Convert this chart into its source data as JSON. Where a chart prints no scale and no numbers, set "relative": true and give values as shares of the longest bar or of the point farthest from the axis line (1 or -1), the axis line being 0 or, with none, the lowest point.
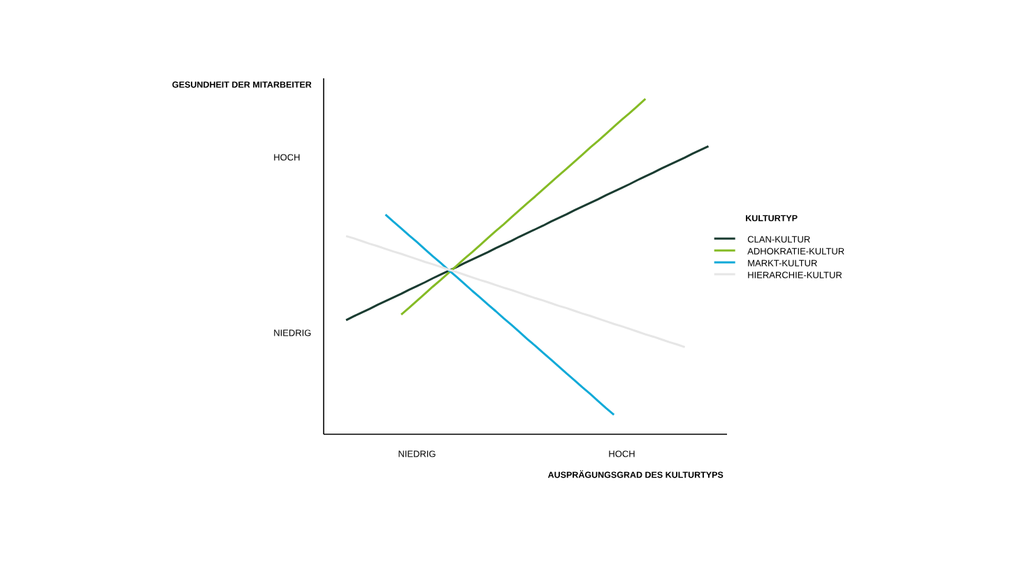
{
  "chart_data": {
    "type": "line",
    "relative": true,
    "xlabel": "AUSPRÄGUNGSGRAD DES KULTURTYPS",
    "ylabel": "GESUNDHEIT DER MITARBEITER",
    "legend_title": "KULTURTYP",
    "legend": "right",
    "line_style": "solid",
    "annotations": [
      "HOCH",
      "NIEDRIG"
    ],
    "categories": [
      null,
      null,
      null,
      null,
      null,
      null,
      null,
      null,
      null,
      "NIEDRIG",
      null,
      null,
      null,
      null,
      null,
      null,
      null,
      null,
      null,
      null,
      null,
      null,
      null,
      null,
      null,
      null,
      null,
      null,
      null,
      null,
      null,
      null,
      null,
      null,
      null,
      "HOCH",
      null,
      null,
      null,
      null,
      null,
      null,
      null,
      null,
      null,
      null,
      null
    ],
    "series": [
      {
        "name": "CLAN-KULTUR",
        "color": "#1a3c31",
        "values": [
          0.34,
          0.352,
          0.363,
          0.374,
          0.386,
          0.397,
          0.408,
          0.419,
          0.431,
          0.442,
          0.453,
          0.465,
          0.476,
          0.487,
          0.498,
          0.51,
          0.521,
          0.532,
          0.543,
          0.555,
          0.566,
          0.577,
          0.589,
          0.6,
          0.611,
          0.622,
          0.634,
          0.645,
          0.656,
          0.668,
          0.679,
          0.69,
          0.701,
          0.713,
          0.724,
          0.735,
          0.746,
          0.758,
          0.769,
          0.78,
          0.792,
          0.803,
          0.814,
          0.825,
          0.837,
          0.848,
          0.859
        ]
      },
      {
        "name": "ADHOKRATIE-KULTUR",
        "color": "#85bb25",
        "values": [
          null,
          null,
          null,
          null,
          null,
          null,
          null,
          0.357,
          0.377,
          0.398,
          0.419,
          0.44,
          0.46,
          0.481,
          0.502,
          0.523,
          0.543,
          0.564,
          0.585,
          0.606,
          0.626,
          0.647,
          0.668,
          0.689,
          0.709,
          0.73,
          0.751,
          0.772,
          0.792,
          0.813,
          0.834,
          0.855,
          0.875,
          0.896,
          0.917,
          0.938,
          0.958,
          0.979,
          1.0,
          null,
          null,
          null,
          null,
          null,
          null,
          null,
          null
        ]
      },
      {
        "name": "MARKT-KULTUR",
        "color": "#12aad8",
        "values": [
          null,
          null,
          null,
          null,
          null,
          0.655,
          0.634,
          0.614,
          0.593,
          0.573,
          0.552,
          0.531,
          0.511,
          0.49,
          0.47,
          0.449,
          0.428,
          0.408,
          0.387,
          0.367,
          0.346,
          0.326,
          0.305,
          0.284,
          0.264,
          0.243,
          0.223,
          0.202,
          0.181,
          0.161,
          0.14,
          0.12,
          0.099,
          0.078,
          0.058,
          null,
          null,
          null,
          null,
          null,
          null,
          null,
          null,
          null,
          null,
          null,
          null
        ]
      },
      {
        "name": "HIERARCHIE-KULTUR",
        "color": "#e6e6e6",
        "values": [
          0.591,
          0.584,
          0.576,
          0.568,
          0.561,
          0.553,
          0.545,
          0.538,
          0.53,
          0.522,
          0.514,
          0.507,
          0.499,
          0.491,
          0.484,
          0.476,
          0.468,
          0.46,
          0.453,
          0.445,
          0.437,
          0.43,
          0.422,
          0.414,
          0.406,
          0.399,
          0.391,
          0.383,
          0.376,
          0.368,
          0.36,
          0.353,
          0.345,
          0.337,
          0.329,
          0.322,
          0.314,
          0.306,
          0.298,
          0.291,
          0.283,
          0.275,
          0.268,
          0.26,
          null,
          null,
          null
        ]
      }
    ]
  }
}
